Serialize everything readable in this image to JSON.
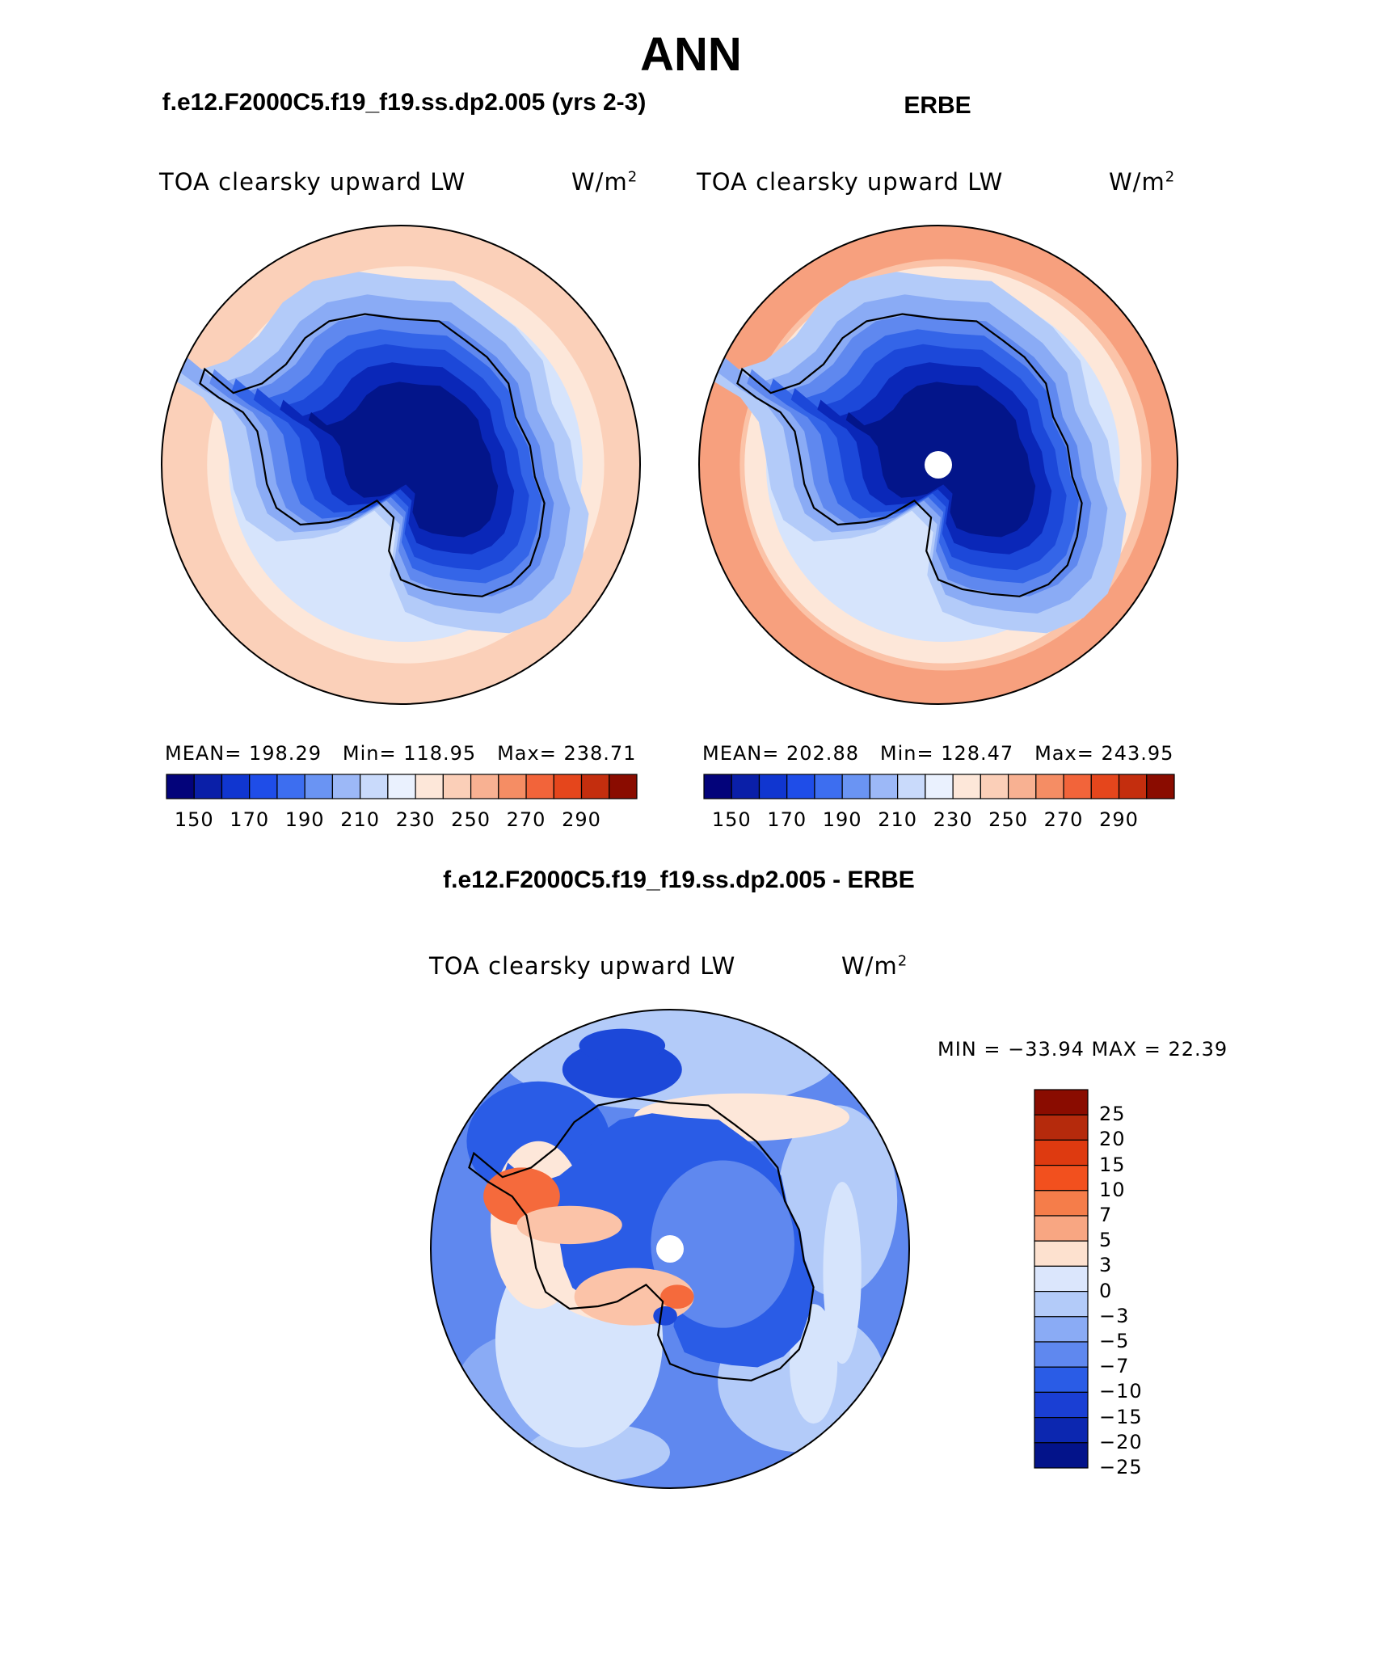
{
  "figure": {
    "title": "ANN"
  },
  "panels": {
    "model": {
      "case_title": "f.e12.F2000C5.f19_f19.ss.dp2.005 (yrs 2-3)",
      "variable": "TOA clearsky upward LW",
      "units": "W/m",
      "units_exp": "2",
      "stats": {
        "mean_label": "MEAN=",
        "mean": "198.29",
        "min_label": "Min=",
        "min": "118.95",
        "max_label": "Max=",
        "max": "238.71"
      }
    },
    "obs": {
      "case_title": "ERBE",
      "variable": "TOA clearsky upward LW",
      "units": "W/m",
      "units_exp": "2",
      "stats": {
        "mean_label": "MEAN=",
        "mean": "202.88",
        "min_label": "Min=",
        "min": "128.47",
        "max_label": "Max=",
        "max": "243.95"
      }
    },
    "diff": {
      "case_title": "f.e12.F2000C5.f19_f19.ss.dp2.005 - ERBE",
      "variable": "TOA clearsky upward LW",
      "units": "W/m",
      "units_exp": "2",
      "minmax_label": "MIN = −33.94 MAX =  22.39"
    }
  },
  "chart_data": [
    {
      "type": "heatmap",
      "projection": "south-polar-stereographic",
      "title": "f.e12.F2000C5.f19_f19.ss.dp2.005 (yrs 2-3)",
      "variable": "TOA clearsky upward LW",
      "units": "W/m2",
      "mean": 198.29,
      "min": 118.95,
      "max": 238.71,
      "contour_levels": [
        150,
        160,
        170,
        180,
        190,
        200,
        210,
        220,
        230,
        240,
        250,
        260,
        270,
        280,
        290
      ],
      "colorbar_tick_labels": [
        "150",
        "170",
        "190",
        "210",
        "230",
        "250",
        "270",
        "290"
      ],
      "field_bands": [
        {
          "level": 238,
          "color": "#fbd0b9"
        },
        {
          "level": 225,
          "color": "#fde7d9"
        },
        {
          "level": 215,
          "color": "#d6e4fc"
        },
        {
          "level": 205,
          "color": "#b3cbf9"
        },
        {
          "level": 195,
          "color": "#8aabf5"
        },
        {
          "level": 185,
          "color": "#5f88ef"
        },
        {
          "level": 175,
          "color": "#3465e8"
        },
        {
          "level": 165,
          "color": "#1c48d9"
        },
        {
          "level": 155,
          "color": "#0a27b8"
        },
        {
          "level": 140,
          "color": "#03158a"
        }
      ]
    },
    {
      "type": "heatmap",
      "projection": "south-polar-stereographic",
      "title": "ERBE",
      "variable": "TOA clearsky upward LW",
      "units": "W/m2",
      "mean": 202.88,
      "min": 128.47,
      "max": 243.95,
      "contour_levels": [
        150,
        160,
        170,
        180,
        190,
        200,
        210,
        220,
        230,
        240,
        250,
        260,
        270,
        280,
        290
      ],
      "colorbar_tick_labels": [
        "150",
        "170",
        "190",
        "210",
        "230",
        "250",
        "270",
        "290"
      ],
      "field_bands": [
        {
          "level": 243,
          "color": "#f7a07e"
        },
        {
          "level": 235,
          "color": "#fbc3a8"
        },
        {
          "level": 225,
          "color": "#fde7d9"
        },
        {
          "level": 215,
          "color": "#d6e4fc"
        },
        {
          "level": 205,
          "color": "#b3cbf9"
        },
        {
          "level": 195,
          "color": "#8aabf5"
        },
        {
          "level": 185,
          "color": "#5f88ef"
        },
        {
          "level": 175,
          "color": "#3465e8"
        },
        {
          "level": 165,
          "color": "#1c48d9"
        },
        {
          "level": 155,
          "color": "#0a27b8"
        },
        {
          "level": 140,
          "color": "#03158a"
        }
      ]
    },
    {
      "type": "heatmap",
      "projection": "south-polar-stereographic",
      "title": "f.e12.F2000C5.f19_f19.ss.dp2.005 - ERBE",
      "variable": "TOA clearsky upward LW",
      "units": "W/m2",
      "min": -33.94,
      "max": 22.39,
      "contour_levels": [
        -25,
        -20,
        -15,
        -10,
        -7,
        -5,
        -3,
        0,
        3,
        5,
        7,
        10,
        15,
        20,
        25
      ],
      "colorbar_tick_labels": [
        "25",
        "20",
        "15",
        "10",
        "7",
        "5",
        "3",
        "0",
        "−3",
        "−5",
        "−7",
        "−10",
        "−15",
        "−20",
        "−25"
      ],
      "field_bands": [
        {
          "level": -6,
          "color": "#5f88ef"
        },
        {
          "level": -5,
          "color": "#8aabf5"
        },
        {
          "level": -3,
          "color": "#b3cbf9"
        },
        {
          "level": -12,
          "color": "#2a5ce6"
        },
        {
          "level": 2,
          "color": "#fde7d9"
        },
        {
          "level": -1,
          "color": "#d6e4fc"
        },
        {
          "level": 5,
          "color": "#fbc3a8"
        },
        {
          "level": 12,
          "color": "#f56a3c"
        },
        {
          "level": -18,
          "color": "#1c48d9"
        }
      ]
    }
  ],
  "colorbars": {
    "abs_colors": [
      "#03037a",
      "#0a1fa8",
      "#1036d0",
      "#1f4de8",
      "#3d6ef0",
      "#6a94f3",
      "#9cb8f7",
      "#c9dafb",
      "#eaf1fe",
      "#fde7d9",
      "#fbcfb8",
      "#f8b192",
      "#f58d64",
      "#f2643a",
      "#e5461c",
      "#c42e0e",
      "#8a0c00"
    ],
    "diff_colors": [
      "#8a0c00",
      "#b52a0c",
      "#de3a10",
      "#f2501e",
      "#f57d4a",
      "#f8a682",
      "#fde1cf",
      "#dbe6fc",
      "#b3cbf9",
      "#8aabf5",
      "#5f88ef",
      "#2a5ce6",
      "#1a3fd4",
      "#0c27b0",
      "#03138a"
    ]
  }
}
